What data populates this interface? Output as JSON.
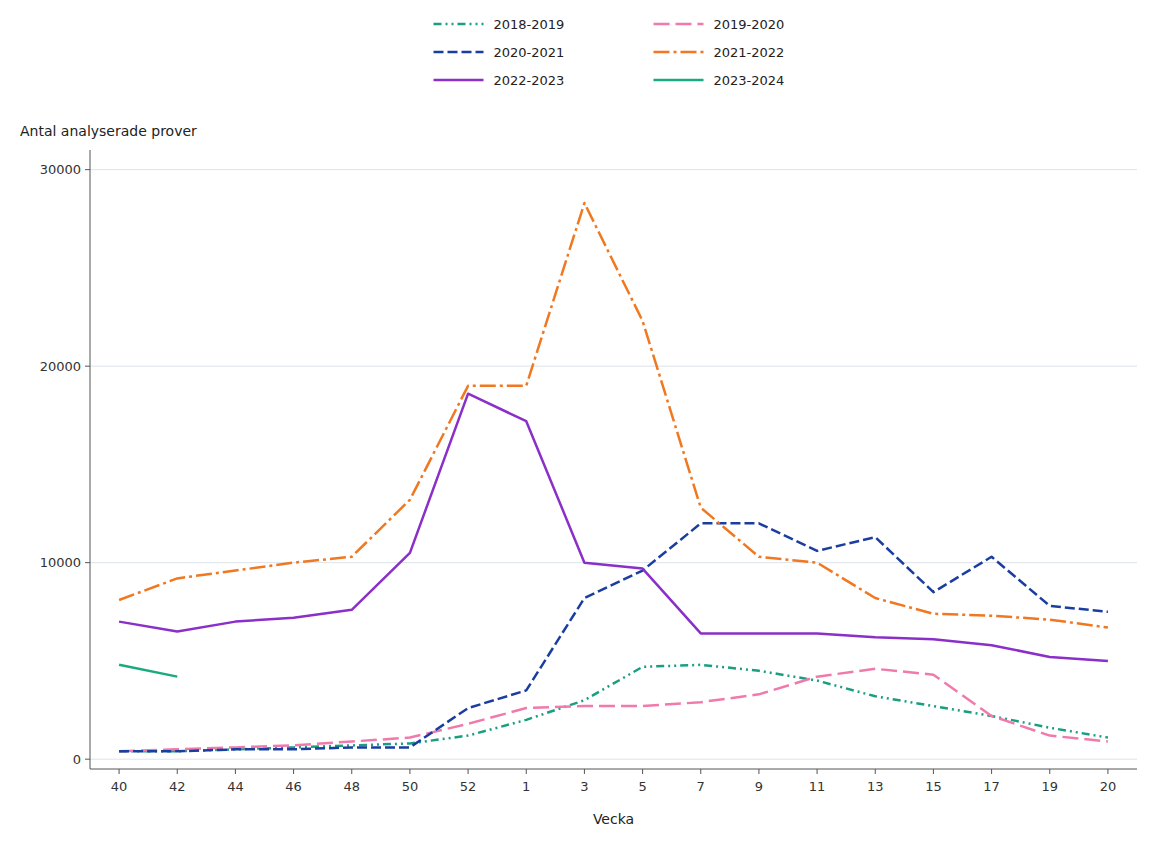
{
  "chart_data": {
    "type": "line",
    "x_label": "Vecka",
    "y_label": "Antal analyserade prover",
    "categories": [
      "40",
      "42",
      "44",
      "46",
      "48",
      "50",
      "52",
      "1",
      "3",
      "5",
      "7",
      "9",
      "11",
      "13",
      "15",
      "17",
      "19",
      "20"
    ],
    "series": [
      {
        "name": "2018-2019",
        "color": "#1a9e80",
        "line_style": "dashdotdot",
        "values": [
          400,
          400,
          500,
          600,
          700,
          800,
          1200,
          2000,
          3000,
          4700,
          4800,
          4500,
          4000,
          3200,
          2700,
          2200,
          1600,
          1100
        ]
      },
      {
        "name": "2019-2020",
        "color": "#f07aab",
        "line_style": "longdash",
        "values": [
          400,
          500,
          600,
          700,
          900,
          1100,
          1800,
          2600,
          2700,
          2700,
          2900,
          3300,
          4200,
          4600,
          4300,
          2200,
          1200,
          900
        ]
      },
      {
        "name": "2020-2021",
        "color": "#1a3da0",
        "line_style": "dashed",
        "values": [
          400,
          400,
          500,
          500,
          600,
          600,
          2600,
          3500,
          8200,
          9600,
          12000,
          12000,
          10600,
          11300,
          8500,
          10300,
          7800,
          7500
        ]
      },
      {
        "name": "2021-2022",
        "color": "#f07820",
        "line_style": "dashdot",
        "values": [
          8100,
          9200,
          9600,
          10000,
          10300,
          13200,
          19000,
          19000,
          28300,
          22300,
          12800,
          10300,
          10000,
          8200,
          7400,
          7300,
          7100,
          6700
        ]
      },
      {
        "name": "2022-2023",
        "color": "#8b2fc9",
        "line_style": "solid",
        "values": [
          7000,
          6500,
          7000,
          7200,
          7600,
          10500,
          18600,
          17200,
          10000,
          9700,
          6400,
          6400,
          6400,
          6200,
          6100,
          5800,
          5200,
          5000
        ]
      },
      {
        "name": "2023-2024",
        "color": "#1aaa80",
        "line_style": "solid",
        "values": [
          4800,
          4200,
          null,
          null,
          null,
          null,
          null,
          null,
          null,
          null,
          null,
          null,
          null,
          null,
          null,
          null,
          null,
          null
        ]
      }
    ],
    "ylim": [
      -500,
      31000
    ],
    "yticks": [
      0,
      10000,
      20000,
      30000
    ],
    "grid": true,
    "legend": "top"
  }
}
